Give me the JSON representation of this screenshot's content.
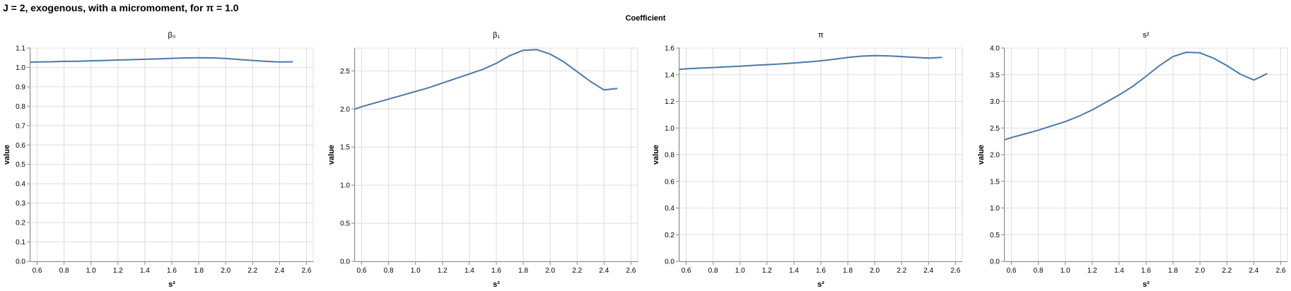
{
  "title": "J = 2, exogenous, with a micromoment,  for π = 1.0",
  "facet_header": "Coefficient",
  "chart_data": [
    {
      "type": "line",
      "title": "β₀",
      "xlabel": "s²",
      "ylabel": "value",
      "xlim": [
        0.55,
        2.65
      ],
      "ylim": [
        0,
        1.1
      ],
      "xticks": [
        0.6,
        0.8,
        1.0,
        1.2,
        1.4,
        1.6,
        1.8,
        2.0,
        2.2,
        2.4,
        2.6
      ],
      "xtick_labels": [
        "0.6",
        "0.8",
        "1.0",
        "1.2",
        "1.4",
        "1.6",
        "1.8",
        "2.0",
        "2.2",
        "2.4",
        "2.6"
      ],
      "yticks": [
        0,
        0.1,
        0.2,
        0.3,
        0.4,
        0.5,
        0.6,
        0.7,
        0.8,
        0.9,
        1.0,
        1.1
      ],
      "ytick_labels": [
        "0.0",
        "0.1",
        "0.2",
        "0.3",
        "0.4",
        "0.5",
        "0.6",
        "0.7",
        "0.8",
        "0.9",
        "1.0",
        "1.1"
      ],
      "grid": true,
      "color": "#4c78a8",
      "x": [
        0.55,
        0.6,
        0.7,
        0.8,
        0.9,
        1.0,
        1.1,
        1.2,
        1.3,
        1.4,
        1.5,
        1.6,
        1.7,
        1.8,
        1.9,
        2.0,
        2.1,
        2.2,
        2.3,
        2.4,
        2.5
      ],
      "values": [
        1.027,
        1.028,
        1.029,
        1.031,
        1.032,
        1.034,
        1.036,
        1.038,
        1.04,
        1.042,
        1.044,
        1.047,
        1.049,
        1.05,
        1.049,
        1.046,
        1.041,
        1.036,
        1.031,
        1.028,
        1.029
      ]
    },
    {
      "type": "line",
      "title": "β₁",
      "xlabel": "s²",
      "ylabel": "value",
      "xlim": [
        0.55,
        2.65
      ],
      "ylim": [
        0,
        2.8
      ],
      "xticks": [
        0.6,
        0.8,
        1.0,
        1.2,
        1.4,
        1.6,
        1.8,
        2.0,
        2.2,
        2.4,
        2.6
      ],
      "xtick_labels": [
        "0.6",
        "0.8",
        "1.0",
        "1.2",
        "1.4",
        "1.6",
        "1.8",
        "2.0",
        "2.2",
        "2.4",
        "2.6"
      ],
      "yticks": [
        0,
        0.5,
        1.0,
        1.5,
        2.0,
        2.5
      ],
      "ytick_labels": [
        "0.0",
        "0.5",
        "1.0",
        "1.5",
        "2.0",
        "2.5"
      ],
      "grid": true,
      "color": "#4c78a8",
      "x": [
        0.55,
        0.6,
        0.7,
        0.8,
        0.9,
        1.0,
        1.1,
        1.2,
        1.3,
        1.4,
        1.5,
        1.6,
        1.7,
        1.8,
        1.9,
        2.0,
        2.1,
        2.2,
        2.3,
        2.4,
        2.5
      ],
      "values": [
        2.0,
        2.03,
        2.08,
        2.13,
        2.18,
        2.23,
        2.28,
        2.34,
        2.4,
        2.46,
        2.52,
        2.6,
        2.7,
        2.77,
        2.78,
        2.72,
        2.62,
        2.49,
        2.36,
        2.25,
        2.27
      ]
    },
    {
      "type": "line",
      "title": "π",
      "xlabel": "s²",
      "ylabel": "value",
      "xlim": [
        0.55,
        2.65
      ],
      "ylim": [
        0,
        1.6
      ],
      "xticks": [
        0.6,
        0.8,
        1.0,
        1.2,
        1.4,
        1.6,
        1.8,
        2.0,
        2.2,
        2.4,
        2.6
      ],
      "xtick_labels": [
        "0.6",
        "0.8",
        "1.0",
        "1.2",
        "1.4",
        "1.6",
        "1.8",
        "2.0",
        "2.2",
        "2.4",
        "2.6"
      ],
      "yticks": [
        0,
        0.2,
        0.4,
        0.6,
        0.8,
        1.0,
        1.2,
        1.4,
        1.6
      ],
      "ytick_labels": [
        "0.0",
        "0.2",
        "0.4",
        "0.6",
        "0.8",
        "1.0",
        "1.2",
        "1.4",
        "1.6"
      ],
      "grid": true,
      "color": "#4c78a8",
      "x": [
        0.55,
        0.6,
        0.7,
        0.8,
        0.9,
        1.0,
        1.1,
        1.2,
        1.3,
        1.4,
        1.5,
        1.6,
        1.7,
        1.8,
        1.9,
        2.0,
        2.1,
        2.2,
        2.3,
        2.4,
        2.5
      ],
      "values": [
        1.44,
        1.444,
        1.449,
        1.454,
        1.459,
        1.464,
        1.47,
        1.475,
        1.481,
        1.487,
        1.495,
        1.504,
        1.516,
        1.529,
        1.539,
        1.543,
        1.541,
        1.536,
        1.53,
        1.525,
        1.53
      ]
    },
    {
      "type": "line",
      "title": "s²",
      "xlabel": "s²",
      "ylabel": "value",
      "xlim": [
        0.55,
        2.65
      ],
      "ylim": [
        0,
        4.0
      ],
      "xticks": [
        0.6,
        0.8,
        1.0,
        1.2,
        1.4,
        1.6,
        1.8,
        2.0,
        2.2,
        2.4,
        2.6
      ],
      "xtick_labels": [
        "0.6",
        "0.8",
        "1.0",
        "1.2",
        "1.4",
        "1.6",
        "1.8",
        "2.0",
        "2.2",
        "2.4",
        "2.6"
      ],
      "yticks": [
        0,
        0.5,
        1.0,
        1.5,
        2.0,
        2.5,
        3.0,
        3.5,
        4.0
      ],
      "ytick_labels": [
        "0.0",
        "0.5",
        "1.0",
        "1.5",
        "2.0",
        "2.5",
        "3.0",
        "3.5",
        "4.0"
      ],
      "grid": true,
      "color": "#4c78a8",
      "x": [
        0.55,
        0.6,
        0.7,
        0.8,
        0.9,
        1.0,
        1.1,
        1.2,
        1.3,
        1.4,
        1.5,
        1.6,
        1.7,
        1.8,
        1.9,
        2.0,
        2.1,
        2.2,
        2.3,
        2.4,
        2.5
      ],
      "values": [
        2.28,
        2.32,
        2.39,
        2.46,
        2.54,
        2.62,
        2.72,
        2.84,
        2.98,
        3.12,
        3.28,
        3.47,
        3.67,
        3.84,
        3.92,
        3.91,
        3.81,
        3.67,
        3.51,
        3.4,
        3.52
      ]
    }
  ]
}
